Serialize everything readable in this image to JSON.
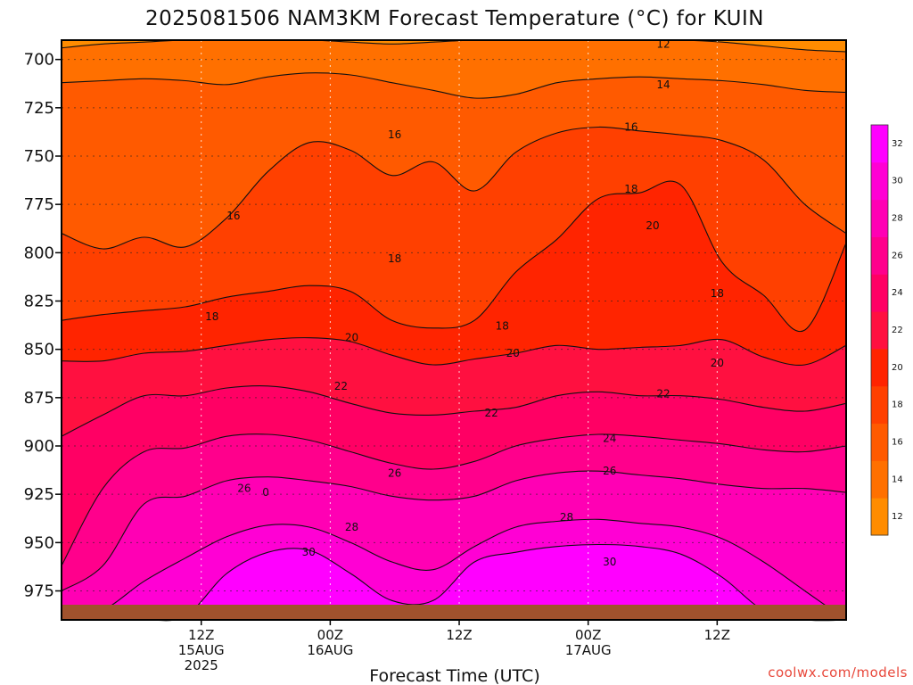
{
  "chart_data": {
    "type": "heatmap",
    "title": "2025081506 NAM3KM Forecast Temperature (°C) for KUIN",
    "xlabel": "Forecast Time (UTC)",
    "ylabel": "",
    "y_reversed": true,
    "ylim": [
      990,
      690
    ],
    "xlim_hours": [
      -13,
      60
    ],
    "grid": "dotted",
    "y_ticks": [
      {
        "value": 700,
        "label": "700"
      },
      {
        "value": 725,
        "label": "725"
      },
      {
        "value": 750,
        "label": "750"
      },
      {
        "value": 775,
        "label": "775"
      },
      {
        "value": 800,
        "label": "800"
      },
      {
        "value": 825,
        "label": "825"
      },
      {
        "value": 850,
        "label": "850"
      },
      {
        "value": 875,
        "label": "875"
      },
      {
        "value": 900,
        "label": "900"
      },
      {
        "value": 925,
        "label": "925"
      },
      {
        "value": 950,
        "label": "950"
      },
      {
        "value": 975,
        "label": "975"
      }
    ],
    "x_ticks": [
      {
        "hour": 0,
        "lines": [
          "12Z",
          "15AUG",
          "2025"
        ]
      },
      {
        "hour": 12,
        "lines": [
          "00Z",
          "16AUG"
        ]
      },
      {
        "hour": 24,
        "lines": [
          "12Z"
        ]
      },
      {
        "hour": 36,
        "lines": [
          "00Z",
          "17AUG"
        ]
      },
      {
        "hour": 48,
        "lines": [
          "12Z"
        ]
      }
    ],
    "colorbar": {
      "levels": [
        12,
        14,
        16,
        18,
        20,
        22,
        24,
        26,
        28,
        30,
        32
      ],
      "colors": [
        "#ff8c00",
        "#ff7000",
        "#ff5a00",
        "#ff4000",
        "#ff2400",
        "#ff1040",
        "#ff0064",
        "#ff008c",
        "#ff00b4",
        "#ff00d4",
        "#ff00ff"
      ]
    },
    "series": [
      {
        "name": "12",
        "pressure": [
          694,
          692,
          691,
          690,
          690,
          690,
          690,
          691,
          692,
          691,
          690,
          690,
          690,
          690,
          690,
          690,
          691,
          693,
          695,
          696
        ]
      },
      {
        "name": "14",
        "pressure": [
          712,
          711,
          710,
          711,
          713,
          709,
          707,
          708,
          712,
          716,
          720,
          718,
          712,
          710,
          709,
          710,
          711,
          713,
          716,
          717
        ]
      },
      {
        "name": "16",
        "pressure": [
          790,
          798,
          792,
          797,
          782,
          758,
          743,
          747,
          760,
          753,
          768,
          748,
          738,
          735,
          737,
          739,
          742,
          752,
          775,
          790
        ]
      },
      {
        "name": "18",
        "pressure": [
          835,
          832,
          830,
          828,
          823,
          820,
          817,
          820,
          835,
          839,
          835,
          810,
          793,
          772,
          769,
          765,
          805,
          822,
          840,
          795
        ]
      },
      {
        "name": "20",
        "pressure": [
          856,
          856,
          852,
          851,
          848,
          845,
          844,
          846,
          853,
          858,
          855,
          852,
          848,
          850,
          849,
          848,
          845,
          854,
          858,
          848
        ]
      },
      {
        "name": "22",
        "pressure": [
          895,
          884,
          874,
          874,
          870,
          869,
          872,
          878,
          883,
          884,
          882,
          880,
          874,
          872,
          874,
          874,
          876,
          880,
          882,
          878
        ]
      },
      {
        "name": "24",
        "pressure": [
          962,
          922,
          903,
          901,
          895,
          894,
          897,
          903,
          909,
          912,
          908,
          900,
          896,
          894,
          895,
          897,
          899,
          902,
          903,
          900
        ]
      },
      {
        "name": "26",
        "pressure": [
          975,
          962,
          930,
          926,
          918,
          916,
          918,
          921,
          926,
          928,
          926,
          918,
          914,
          913,
          915,
          917,
          920,
          922,
          922,
          924
        ]
      },
      {
        "name": "28",
        "pressure": [
          990,
          985,
          970,
          958,
          947,
          941,
          942,
          950,
          960,
          964,
          952,
          942,
          939,
          938,
          940,
          942,
          948,
          960,
          975,
          990
        ]
      },
      {
        "name": "30",
        "pressure": [
          990,
          990,
          990,
          988,
          966,
          955,
          954,
          966,
          980,
          980,
          960,
          955,
          952,
          951,
          952,
          956,
          968,
          985,
          990,
          990
        ]
      }
    ],
    "contour_labels": [
      {
        "text": "12",
        "hour": 43,
        "pressure": 692
      },
      {
        "text": "14",
        "hour": 43,
        "pressure": 713
      },
      {
        "text": "16",
        "hour": 3,
        "pressure": 781
      },
      {
        "text": "16",
        "hour": 18,
        "pressure": 739
      },
      {
        "text": "16",
        "hour": 40,
        "pressure": 735
      },
      {
        "text": "18",
        "hour": 1,
        "pressure": 833
      },
      {
        "text": "18",
        "hour": 18,
        "pressure": 803
      },
      {
        "text": "18",
        "hour": 28,
        "pressure": 838
      },
      {
        "text": "18",
        "hour": 40,
        "pressure": 767
      },
      {
        "text": "18",
        "hour": 48,
        "pressure": 821
      },
      {
        "text": "20",
        "hour": 14,
        "pressure": 844
      },
      {
        "text": "20",
        "hour": 29,
        "pressure": 852
      },
      {
        "text": "20",
        "hour": 42,
        "pressure": 786
      },
      {
        "text": "20",
        "hour": 48,
        "pressure": 857
      },
      {
        "text": "22",
        "hour": 13,
        "pressure": 869
      },
      {
        "text": "22",
        "hour": 27,
        "pressure": 883
      },
      {
        "text": "22",
        "hour": 43,
        "pressure": 873
      },
      {
        "text": "24",
        "hour": 38,
        "pressure": 896
      },
      {
        "text": "26",
        "hour": 4,
        "pressure": 922
      },
      {
        "text": "0",
        "hour": 6,
        "pressure": 924
      },
      {
        "text": "26",
        "hour": 18,
        "pressure": 914
      },
      {
        "text": "26",
        "hour": 38,
        "pressure": 913
      },
      {
        "text": "28",
        "hour": 14,
        "pressure": 942
      },
      {
        "text": "28",
        "hour": 34,
        "pressure": 937
      },
      {
        "text": "30",
        "hour": 10,
        "pressure": 955
      },
      {
        "text": "30",
        "hour": 38,
        "pressure": 960
      }
    ]
  },
  "credit": "coolwx.com/models",
  "colors": {
    "ground": "#a0522d",
    "low_level_warm": "#ff00ff"
  }
}
